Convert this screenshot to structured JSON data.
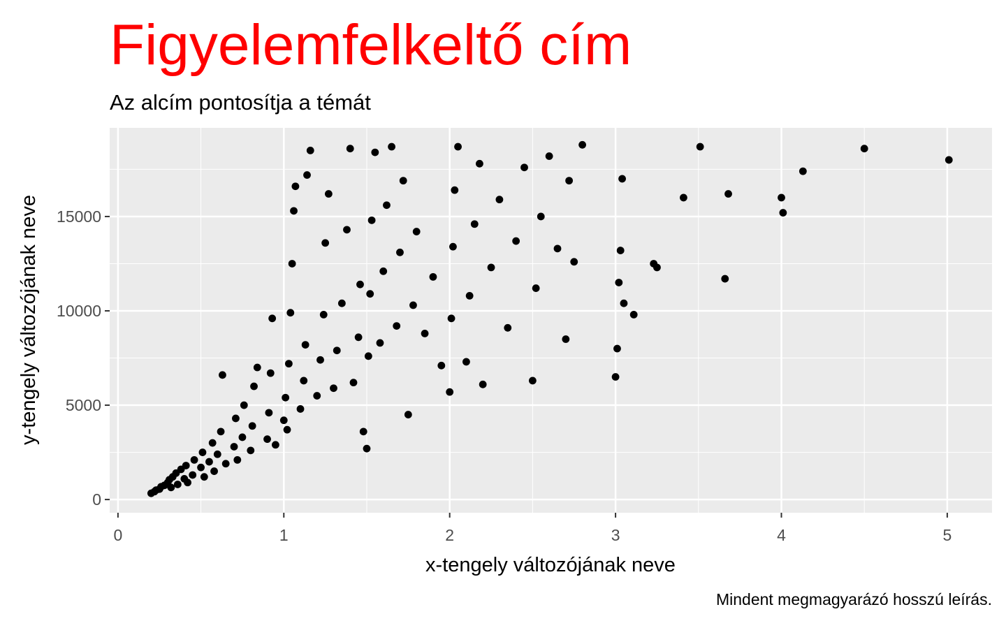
{
  "chart_data": {
    "type": "scatter",
    "title": "Figyelemfelkeltő cím",
    "subtitle": "Az alcím pontosítja a témát",
    "xlabel": "x-tengely változójának neve",
    "ylabel": "y-tengely változójának neve",
    "caption": "Mindent megmagyarázó hosszú leírás.",
    "xlim": [
      -0.05,
      5.27
    ],
    "ylim": [
      -700,
      19700
    ],
    "x_ticks": [
      0,
      1,
      2,
      3,
      4,
      5
    ],
    "y_ticks": [
      0,
      5000,
      10000,
      15000
    ],
    "x_tick_labels": [
      "0",
      "1",
      "2",
      "3",
      "4",
      "5"
    ],
    "y_tick_labels": [
      "0",
      "5000",
      "10000",
      "15000"
    ],
    "grid": true,
    "legend": "none",
    "colors": {
      "panel": "#ebebeb",
      "grid": "#ffffff",
      "points": "#000000",
      "title": "#ff0000"
    },
    "points": [
      [
        0.2,
        330
      ],
      [
        0.22,
        420
      ],
      [
        0.23,
        500
      ],
      [
        0.25,
        550
      ],
      [
        0.26,
        680
      ],
      [
        0.28,
        750
      ],
      [
        0.3,
        900
      ],
      [
        0.31,
        1050
      ],
      [
        0.32,
        640
      ],
      [
        0.33,
        1200
      ],
      [
        0.35,
        1400
      ],
      [
        0.36,
        800
      ],
      [
        0.38,
        1600
      ],
      [
        0.4,
        1100
      ],
      [
        0.41,
        1800
      ],
      [
        0.42,
        900
      ],
      [
        0.45,
        1300
      ],
      [
        0.46,
        2100
      ],
      [
        0.5,
        1700
      ],
      [
        0.51,
        2500
      ],
      [
        0.52,
        1200
      ],
      [
        0.55,
        2000
      ],
      [
        0.57,
        3000
      ],
      [
        0.58,
        1500
      ],
      [
        0.6,
        2400
      ],
      [
        0.62,
        3600
      ],
      [
        0.63,
        6600
      ],
      [
        0.65,
        1900
      ],
      [
        0.7,
        2800
      ],
      [
        0.71,
        4300
      ],
      [
        0.72,
        2100
      ],
      [
        0.75,
        3300
      ],
      [
        0.76,
        5000
      ],
      [
        0.8,
        2600
      ],
      [
        0.81,
        3900
      ],
      [
        0.82,
        6000
      ],
      [
        0.84,
        7000
      ],
      [
        0.9,
        3200
      ],
      [
        0.91,
        4600
      ],
      [
        0.92,
        6700
      ],
      [
        0.93,
        9600
      ],
      [
        0.95,
        2900
      ],
      [
        1.0,
        4200
      ],
      [
        1.01,
        5400
      ],
      [
        1.02,
        3700
      ],
      [
        1.03,
        7200
      ],
      [
        1.04,
        9900
      ],
      [
        1.05,
        12500
      ],
      [
        1.06,
        15300
      ],
      [
        1.07,
        16600
      ],
      [
        1.1,
        4800
      ],
      [
        1.12,
        6300
      ],
      [
        1.13,
        8200
      ],
      [
        1.14,
        17200
      ],
      [
        1.16,
        18500
      ],
      [
        1.2,
        5500
      ],
      [
        1.22,
        7400
      ],
      [
        1.24,
        9800
      ],
      [
        1.25,
        13600
      ],
      [
        1.27,
        16200
      ],
      [
        1.3,
        5900
      ],
      [
        1.32,
        7900
      ],
      [
        1.35,
        10400
      ],
      [
        1.38,
        14300
      ],
      [
        1.4,
        18600
      ],
      [
        1.42,
        6200
      ],
      [
        1.45,
        8600
      ],
      [
        1.46,
        11400
      ],
      [
        1.48,
        3600
      ],
      [
        1.5,
        2700
      ],
      [
        1.51,
        7600
      ],
      [
        1.52,
        10900
      ],
      [
        1.53,
        14800
      ],
      [
        1.55,
        18400
      ],
      [
        1.58,
        8300
      ],
      [
        1.6,
        12100
      ],
      [
        1.62,
        15600
      ],
      [
        1.65,
        18700
      ],
      [
        1.68,
        9200
      ],
      [
        1.7,
        13100
      ],
      [
        1.72,
        16900
      ],
      [
        1.75,
        4500
      ],
      [
        1.78,
        10300
      ],
      [
        1.8,
        14200
      ],
      [
        1.85,
        8800
      ],
      [
        1.9,
        11800
      ],
      [
        1.95,
        7100
      ],
      [
        2.0,
        5700
      ],
      [
        2.01,
        9600
      ],
      [
        2.02,
        13400
      ],
      [
        2.03,
        16400
      ],
      [
        2.05,
        18700
      ],
      [
        2.1,
        7300
      ],
      [
        2.12,
        10800
      ],
      [
        2.15,
        14600
      ],
      [
        2.18,
        17800
      ],
      [
        2.2,
        6100
      ],
      [
        2.25,
        12300
      ],
      [
        2.3,
        15900
      ],
      [
        2.35,
        9100
      ],
      [
        2.4,
        13700
      ],
      [
        2.45,
        17600
      ],
      [
        2.5,
        6300
      ],
      [
        2.52,
        11200
      ],
      [
        2.55,
        15000
      ],
      [
        2.6,
        18200
      ],
      [
        2.65,
        13300
      ],
      [
        2.7,
        8500
      ],
      [
        2.72,
        16900
      ],
      [
        2.75,
        12600
      ],
      [
        2.8,
        18800
      ],
      [
        3.0,
        6500
      ],
      [
        3.01,
        8000
      ],
      [
        3.02,
        11500
      ],
      [
        3.03,
        13200
      ],
      [
        3.04,
        17000
      ],
      [
        3.05,
        10400
      ],
      [
        3.11,
        9800
      ],
      [
        3.23,
        12500
      ],
      [
        3.25,
        12300
      ],
      [
        3.41,
        16000
      ],
      [
        3.51,
        18700
      ],
      [
        3.66,
        11700
      ],
      [
        3.68,
        16200
      ],
      [
        4.0,
        16000
      ],
      [
        4.01,
        15200
      ],
      [
        4.13,
        17400
      ],
      [
        4.5,
        18600
      ],
      [
        5.01,
        18000
      ]
    ]
  }
}
